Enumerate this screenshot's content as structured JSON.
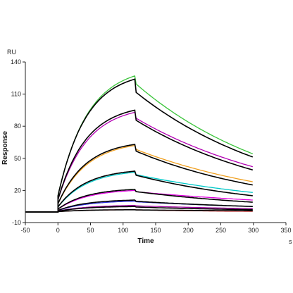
{
  "chart_data": {
    "type": "line",
    "xlabel": "Time",
    "ylabel": "Response",
    "y_unit": "RU",
    "x_unit": "s",
    "xlim": [
      -50,
      350
    ],
    "ylim": [
      -10,
      140
    ],
    "x_ticks": [
      -50,
      0,
      50,
      100,
      150,
      200,
      250,
      300,
      350
    ],
    "y_ticks": [
      -10,
      20,
      50,
      80,
      110,
      140
    ],
    "grid": false,
    "association_end": 118,
    "end_time": 300,
    "series": [
      {
        "color": "#3bc43b",
        "peak": 127,
        "end": 54,
        "kind": "measured"
      },
      {
        "color": "#000000",
        "peak": 124,
        "end": 51,
        "kind": "fit"
      },
      {
        "color": "#b300b3",
        "peak": 93,
        "end": 42,
        "kind": "measured"
      },
      {
        "color": "#000000",
        "peak": 95,
        "end": 39,
        "kind": "fit"
      },
      {
        "color": "#f0a020",
        "peak": 62,
        "end": 28,
        "kind": "measured"
      },
      {
        "color": "#000000",
        "peak": 63,
        "end": 25,
        "kind": "fit"
      },
      {
        "color": "#00c8c8",
        "peak": 37,
        "end": 18,
        "kind": "measured"
      },
      {
        "color": "#000000",
        "peak": 38,
        "end": 15,
        "kind": "fit"
      },
      {
        "color": "#e000e0",
        "peak": 20,
        "end": 11,
        "kind": "measured"
      },
      {
        "color": "#000000",
        "peak": 21,
        "end": 9,
        "kind": "fit"
      },
      {
        "color": "#3030e0",
        "peak": 10,
        "end": 5,
        "kind": "measured"
      },
      {
        "color": "#000000",
        "peak": 11,
        "end": 5,
        "kind": "fit"
      },
      {
        "color": "#a000a0",
        "peak": 6,
        "end": 3,
        "kind": "measured"
      },
      {
        "color": "#000000",
        "peak": 5,
        "end": 2,
        "kind": "fit"
      },
      {
        "color": "#e02020",
        "peak": 2,
        "end": 0,
        "kind": "measured"
      },
      {
        "color": "#000000",
        "peak": 2,
        "end": 1,
        "kind": "fit"
      }
    ]
  }
}
